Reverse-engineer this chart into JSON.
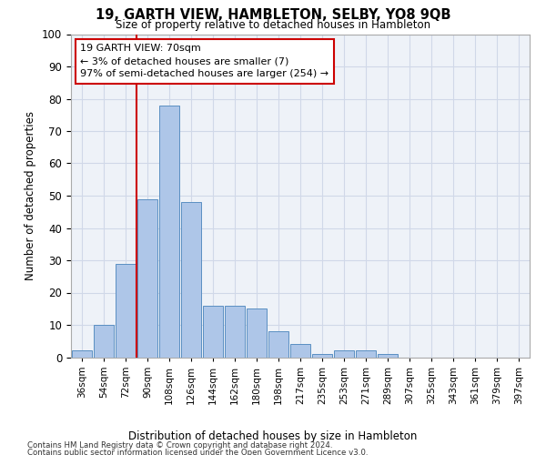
{
  "title": "19, GARTH VIEW, HAMBLETON, SELBY, YO8 9QB",
  "subtitle": "Size of property relative to detached houses in Hambleton",
  "xlabel_bottom": "Distribution of detached houses by size in Hambleton",
  "ylabel": "Number of detached properties",
  "bin_labels": [
    "36sqm",
    "54sqm",
    "72sqm",
    "90sqm",
    "108sqm",
    "126sqm",
    "144sqm",
    "162sqm",
    "180sqm",
    "198sqm",
    "217sqm",
    "235sqm",
    "253sqm",
    "271sqm",
    "289sqm",
    "307sqm",
    "325sqm",
    "343sqm",
    "361sqm",
    "379sqm",
    "397sqm"
  ],
  "bar_values": [
    2,
    10,
    29,
    49,
    78,
    48,
    16,
    16,
    15,
    8,
    4,
    1,
    2,
    2,
    1,
    0,
    0,
    0,
    0,
    0,
    0
  ],
  "bar_color": "#aec6e8",
  "bar_edge_color": "#5a8fc2",
  "vline_color": "#cc0000",
  "vline_x": 2.5,
  "annotation_text": "19 GARTH VIEW: 70sqm\n← 3% of detached houses are smaller (7)\n97% of semi-detached houses are larger (254) →",
  "annotation_box_color": "#ffffff",
  "annotation_box_edge_color": "#cc0000",
  "ylim": [
    0,
    100
  ],
  "yticks": [
    0,
    10,
    20,
    30,
    40,
    50,
    60,
    70,
    80,
    90,
    100
  ],
  "grid_color": "#d0d8e8",
  "background_color": "#eef2f8",
  "footer_line1": "Contains HM Land Registry data © Crown copyright and database right 2024.",
  "footer_line2": "Contains public sector information licensed under the Open Government Licence v3.0."
}
